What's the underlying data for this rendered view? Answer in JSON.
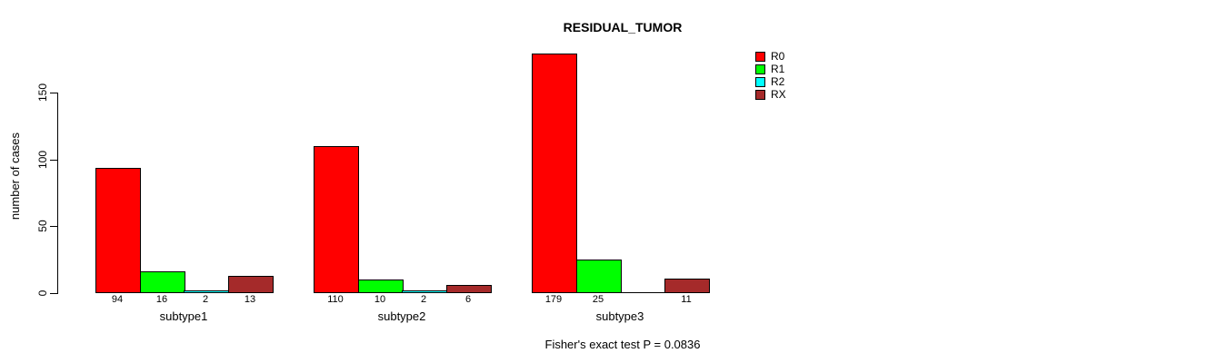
{
  "figure": {
    "background": "#FFFFFF",
    "title": "RESIDUAL_TUMOR",
    "ylabel": "number of cases",
    "footnote": "Fisher's exact test P = 0.0836"
  },
  "chart_data": {
    "type": "bar",
    "title": "RESIDUAL_TUMOR",
    "xlabel": "",
    "ylabel": "number of cases",
    "categories": [
      "subtype1",
      "subtype2",
      "subtype3"
    ],
    "series": [
      {
        "name": "R0",
        "color": "#FF0000",
        "values": [
          94,
          110,
          179
        ]
      },
      {
        "name": "R1",
        "color": "#00FF00",
        "values": [
          16,
          10,
          25
        ]
      },
      {
        "name": "R2",
        "color": "#00FFFF",
        "values": [
          2,
          2,
          0
        ]
      },
      {
        "name": "RX",
        "color": "#A52A2A",
        "values": [
          13,
          6,
          11
        ]
      }
    ],
    "bar_value_labels": [
      [
        "94",
        "16",
        "2",
        "13"
      ],
      [
        "110",
        "10",
        "2",
        "6"
      ],
      [
        "179",
        "25",
        "",
        "11"
      ]
    ],
    "yticks": [
      0,
      50,
      100,
      150
    ],
    "ylim": [
      0,
      150
    ],
    "bar_border_color": "#000000",
    "grid": false,
    "legend_position": "right",
    "legend_entries": [
      "R0",
      "R1",
      "R2",
      "RX"
    ],
    "annotation": "Fisher's exact test P = 0.0836"
  }
}
